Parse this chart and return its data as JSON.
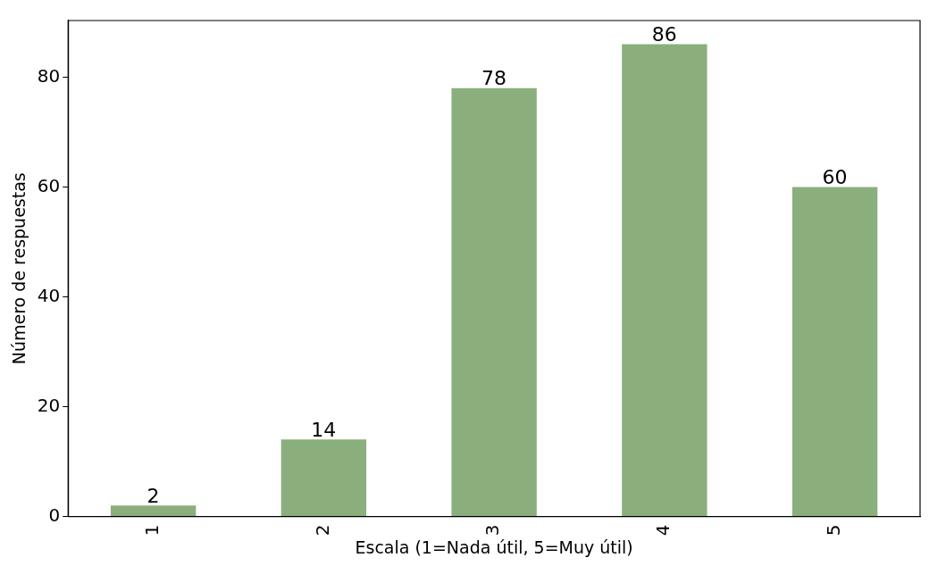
{
  "chart_data": {
    "type": "bar",
    "xlabel": "Escala (1=Nada útil, 5=Muy útil)",
    "ylabel": "Número de respuestas",
    "categories": [
      "1",
      "2",
      "3",
      "4",
      "5"
    ],
    "values": [
      2,
      14,
      78,
      86,
      60
    ],
    "color": "#8aaf7c",
    "ylim": [
      0,
      90.3
    ],
    "yticks": [
      0,
      20,
      40,
      60,
      80
    ],
    "grid": false,
    "legend": false,
    "data_labels": true
  }
}
